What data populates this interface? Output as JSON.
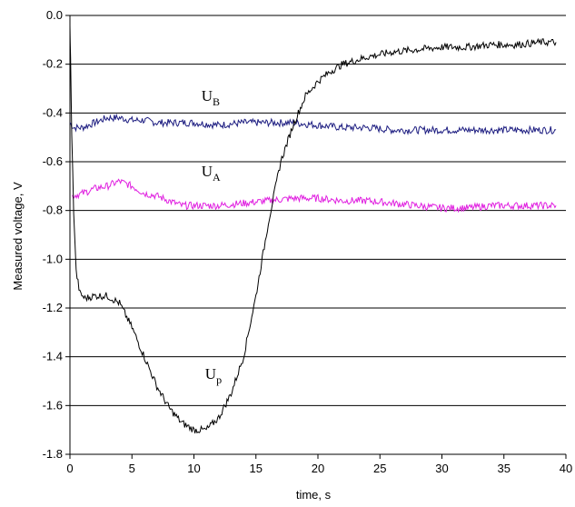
{
  "chart_data": {
    "type": "line",
    "xlabel": "time, s",
    "ylabel": "Measured voltage, V",
    "xlim": [
      0,
      40
    ],
    "ylim": [
      -1.8,
      0.0
    ],
    "x_ticks": [
      "0",
      "5",
      "10",
      "15",
      "20",
      "25",
      "30",
      "35",
      "40"
    ],
    "y_ticks": [
      "0.0",
      "-0.2",
      "-0.4",
      "-0.6",
      "-0.8",
      "-1.0",
      "-1.2",
      "-1.4",
      "-1.6",
      "-1.8"
    ],
    "grid": "horizontal",
    "series": [
      {
        "name": "U_B",
        "label_main": "U",
        "label_sub": "B",
        "color": "#1c1c80",
        "x": [
          0,
          0.3,
          1,
          2,
          3,
          4,
          5,
          6,
          7,
          8,
          10,
          12,
          14,
          16,
          18,
          20,
          22,
          24,
          26,
          28,
          30,
          32,
          34,
          36,
          38,
          39.2
        ],
        "y": [
          -0.44,
          -0.46,
          -0.46,
          -0.44,
          -0.42,
          -0.42,
          -0.43,
          -0.43,
          -0.44,
          -0.44,
          -0.44,
          -0.45,
          -0.44,
          -0.44,
          -0.44,
          -0.45,
          -0.46,
          -0.46,
          -0.47,
          -0.47,
          -0.47,
          -0.47,
          -0.47,
          -0.47,
          -0.47,
          -0.47
        ]
      },
      {
        "name": "U_A",
        "label_main": "U",
        "label_sub": "A",
        "color": "#e020e0",
        "x": [
          0.2,
          1,
          2,
          3,
          4,
          5,
          6,
          7,
          8,
          9,
          10,
          12,
          14,
          16,
          18,
          20,
          22,
          24,
          26,
          28,
          30,
          32,
          34,
          36,
          38,
          39.2
        ],
        "y": [
          -0.74,
          -0.73,
          -0.71,
          -0.7,
          -0.68,
          -0.7,
          -0.73,
          -0.74,
          -0.76,
          -0.78,
          -0.78,
          -0.78,
          -0.77,
          -0.76,
          -0.75,
          -0.75,
          -0.76,
          -0.76,
          -0.77,
          -0.78,
          -0.79,
          -0.79,
          -0.78,
          -0.78,
          -0.78,
          -0.78
        ]
      },
      {
        "name": "U_p",
        "label_main": "U",
        "label_sub": "p",
        "color": "#000000",
        "x": [
          0,
          0.05,
          0.15,
          0.3,
          0.5,
          0.8,
          1.2,
          2,
          3,
          4,
          5,
          6,
          7,
          8,
          9,
          10,
          11,
          12,
          13,
          14,
          15,
          16,
          17,
          18,
          19,
          20,
          21,
          22,
          24,
          26,
          28,
          30,
          32,
          34,
          36,
          38,
          39.2
        ],
        "y": [
          -0.05,
          -0.18,
          -0.5,
          -0.8,
          -1.05,
          -1.14,
          -1.16,
          -1.15,
          -1.15,
          -1.18,
          -1.28,
          -1.4,
          -1.52,
          -1.61,
          -1.67,
          -1.7,
          -1.7,
          -1.65,
          -1.55,
          -1.4,
          -1.15,
          -0.85,
          -0.6,
          -0.45,
          -0.33,
          -0.27,
          -0.23,
          -0.2,
          -0.17,
          -0.15,
          -0.14,
          -0.13,
          -0.13,
          -0.12,
          -0.12,
          -0.11,
          -0.11
        ]
      }
    ]
  }
}
